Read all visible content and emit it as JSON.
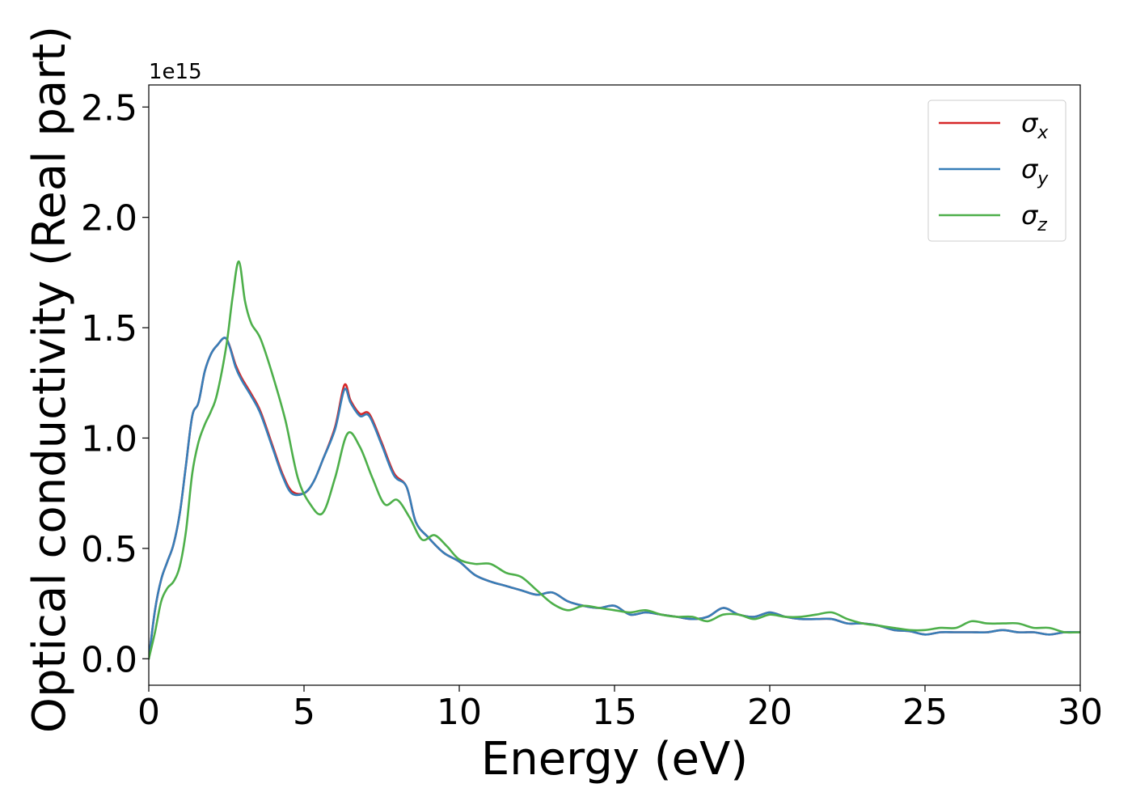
{
  "chart_data": {
    "type": "line",
    "xlabel": "Energy (eV)",
    "ylabel": "Optical conductivity (Real part)",
    "y_offset_label": "1e15",
    "xlim": [
      0,
      30
    ],
    "ylim": [
      -0.12,
      2.6
    ],
    "x_ticks": [
      0,
      5,
      10,
      15,
      20,
      25,
      30
    ],
    "y_ticks": [
      0.0,
      0.5,
      1.0,
      1.5,
      2.0,
      2.5
    ],
    "x_tick_labels": [
      "0",
      "5",
      "10",
      "15",
      "20",
      "25",
      "30"
    ],
    "y_tick_labels": [
      "0.0",
      "0.5",
      "1.0",
      "1.5",
      "2.0",
      "2.5"
    ],
    "grid": false,
    "legend_position": "top-right",
    "series": [
      {
        "name": "σx",
        "legend_symbol": "σ",
        "legend_subscript": "x",
        "color": "#d62728",
        "x": [
          0,
          0.2,
          0.4,
          0.6,
          0.8,
          1.0,
          1.2,
          1.4,
          1.6,
          1.8,
          2.0,
          2.2,
          2.5,
          2.8,
          3.0,
          3.3,
          3.6,
          4.0,
          4.3,
          4.6,
          5.0,
          5.3,
          5.6,
          6.0,
          6.3,
          6.5,
          6.8,
          7.1,
          7.5,
          7.9,
          8.3,
          8.6,
          9.0,
          9.5,
          10.0,
          10.5,
          11.0,
          11.5,
          12.0,
          12.5,
          13.0,
          13.5,
          14.0,
          14.5,
          15.0,
          15.5,
          16.0,
          16.5,
          17.0,
          17.5,
          18.0,
          18.5,
          19.0,
          19.5,
          20.0,
          20.5,
          21.0,
          21.5,
          22.0,
          22.5,
          23.0,
          23.5,
          24.0,
          24.5,
          25.0,
          25.5,
          26.0,
          26.5,
          27.0,
          27.5,
          28.0,
          28.5,
          29.0,
          29.5,
          30.0
        ],
        "values": [
          0.0,
          0.22,
          0.36,
          0.44,
          0.52,
          0.66,
          0.88,
          1.1,
          1.16,
          1.3,
          1.38,
          1.42,
          1.45,
          1.33,
          1.27,
          1.2,
          1.12,
          0.96,
          0.84,
          0.76,
          0.75,
          0.8,
          0.9,
          1.05,
          1.24,
          1.17,
          1.11,
          1.11,
          0.98,
          0.84,
          0.78,
          0.62,
          0.55,
          0.48,
          0.44,
          0.38,
          0.35,
          0.33,
          0.31,
          0.29,
          0.3,
          0.26,
          0.24,
          0.23,
          0.24,
          0.2,
          0.21,
          0.2,
          0.19,
          0.18,
          0.19,
          0.23,
          0.2,
          0.19,
          0.21,
          0.19,
          0.18,
          0.18,
          0.18,
          0.16,
          0.16,
          0.15,
          0.13,
          0.125,
          0.11,
          0.12,
          0.12,
          0.12,
          0.12,
          0.13,
          0.12,
          0.12,
          0.11,
          0.12,
          0.12
        ]
      },
      {
        "name": "σy",
        "legend_symbol": "σ",
        "legend_subscript": "y",
        "color": "#377eb8",
        "x": [
          0,
          0.2,
          0.4,
          0.6,
          0.8,
          1.0,
          1.2,
          1.4,
          1.6,
          1.8,
          2.0,
          2.2,
          2.5,
          2.8,
          3.0,
          3.3,
          3.6,
          4.0,
          4.3,
          4.6,
          5.0,
          5.3,
          5.6,
          6.0,
          6.3,
          6.5,
          6.8,
          7.1,
          7.5,
          7.9,
          8.3,
          8.6,
          9.0,
          9.5,
          10.0,
          10.5,
          11.0,
          11.5,
          12.0,
          12.5,
          13.0,
          13.5,
          14.0,
          14.5,
          15.0,
          15.5,
          16.0,
          16.5,
          17.0,
          17.5,
          18.0,
          18.5,
          19.0,
          19.5,
          20.0,
          20.5,
          21.0,
          21.5,
          22.0,
          22.5,
          23.0,
          23.5,
          24.0,
          24.5,
          25.0,
          25.5,
          26.0,
          26.5,
          27.0,
          27.5,
          28.0,
          28.5,
          29.0,
          29.5,
          30.0
        ],
        "values": [
          0.0,
          0.22,
          0.36,
          0.44,
          0.52,
          0.66,
          0.88,
          1.1,
          1.16,
          1.3,
          1.38,
          1.42,
          1.45,
          1.32,
          1.26,
          1.19,
          1.11,
          0.95,
          0.83,
          0.75,
          0.75,
          0.8,
          0.9,
          1.04,
          1.22,
          1.16,
          1.1,
          1.1,
          0.97,
          0.83,
          0.78,
          0.62,
          0.55,
          0.48,
          0.44,
          0.38,
          0.35,
          0.33,
          0.31,
          0.29,
          0.3,
          0.26,
          0.24,
          0.23,
          0.24,
          0.2,
          0.21,
          0.2,
          0.19,
          0.18,
          0.19,
          0.23,
          0.2,
          0.19,
          0.21,
          0.19,
          0.18,
          0.18,
          0.18,
          0.16,
          0.16,
          0.15,
          0.13,
          0.125,
          0.11,
          0.12,
          0.12,
          0.12,
          0.12,
          0.13,
          0.12,
          0.12,
          0.11,
          0.12,
          0.12
        ]
      },
      {
        "name": "σz",
        "legend_symbol": "σ",
        "legend_subscript": "z",
        "color": "#4daf4a",
        "x": [
          0,
          0.2,
          0.4,
          0.6,
          0.8,
          1.0,
          1.2,
          1.4,
          1.6,
          1.8,
          2.0,
          2.2,
          2.5,
          2.7,
          2.9,
          3.1,
          3.3,
          3.6,
          4.0,
          4.4,
          4.8,
          5.2,
          5.6,
          6.0,
          6.4,
          6.8,
          7.2,
          7.6,
          8.0,
          8.4,
          8.8,
          9.2,
          9.6,
          10.0,
          10.5,
          11.0,
          11.5,
          12.0,
          12.5,
          13.0,
          13.5,
          14.0,
          14.5,
          15.0,
          15.5,
          16.0,
          16.5,
          17.0,
          17.5,
          18.0,
          18.5,
          19.0,
          19.5,
          20.0,
          20.5,
          21.0,
          21.5,
          22.0,
          22.5,
          23.0,
          23.5,
          24.0,
          24.5,
          25.0,
          25.5,
          26.0,
          26.5,
          27.0,
          27.5,
          28.0,
          28.5,
          29.0,
          29.5,
          30.0
        ],
        "values": [
          0.0,
          0.12,
          0.26,
          0.32,
          0.35,
          0.42,
          0.58,
          0.84,
          0.98,
          1.06,
          1.12,
          1.2,
          1.42,
          1.64,
          1.8,
          1.62,
          1.52,
          1.45,
          1.28,
          1.08,
          0.82,
          0.7,
          0.66,
          0.82,
          1.02,
          0.96,
          0.82,
          0.7,
          0.72,
          0.64,
          0.54,
          0.56,
          0.51,
          0.45,
          0.43,
          0.43,
          0.39,
          0.37,
          0.31,
          0.25,
          0.22,
          0.24,
          0.23,
          0.22,
          0.21,
          0.22,
          0.2,
          0.19,
          0.19,
          0.17,
          0.2,
          0.2,
          0.18,
          0.2,
          0.19,
          0.19,
          0.2,
          0.21,
          0.18,
          0.16,
          0.15,
          0.14,
          0.13,
          0.13,
          0.14,
          0.14,
          0.17,
          0.16,
          0.16,
          0.16,
          0.14,
          0.14,
          0.12,
          0.12
        ]
      }
    ]
  }
}
